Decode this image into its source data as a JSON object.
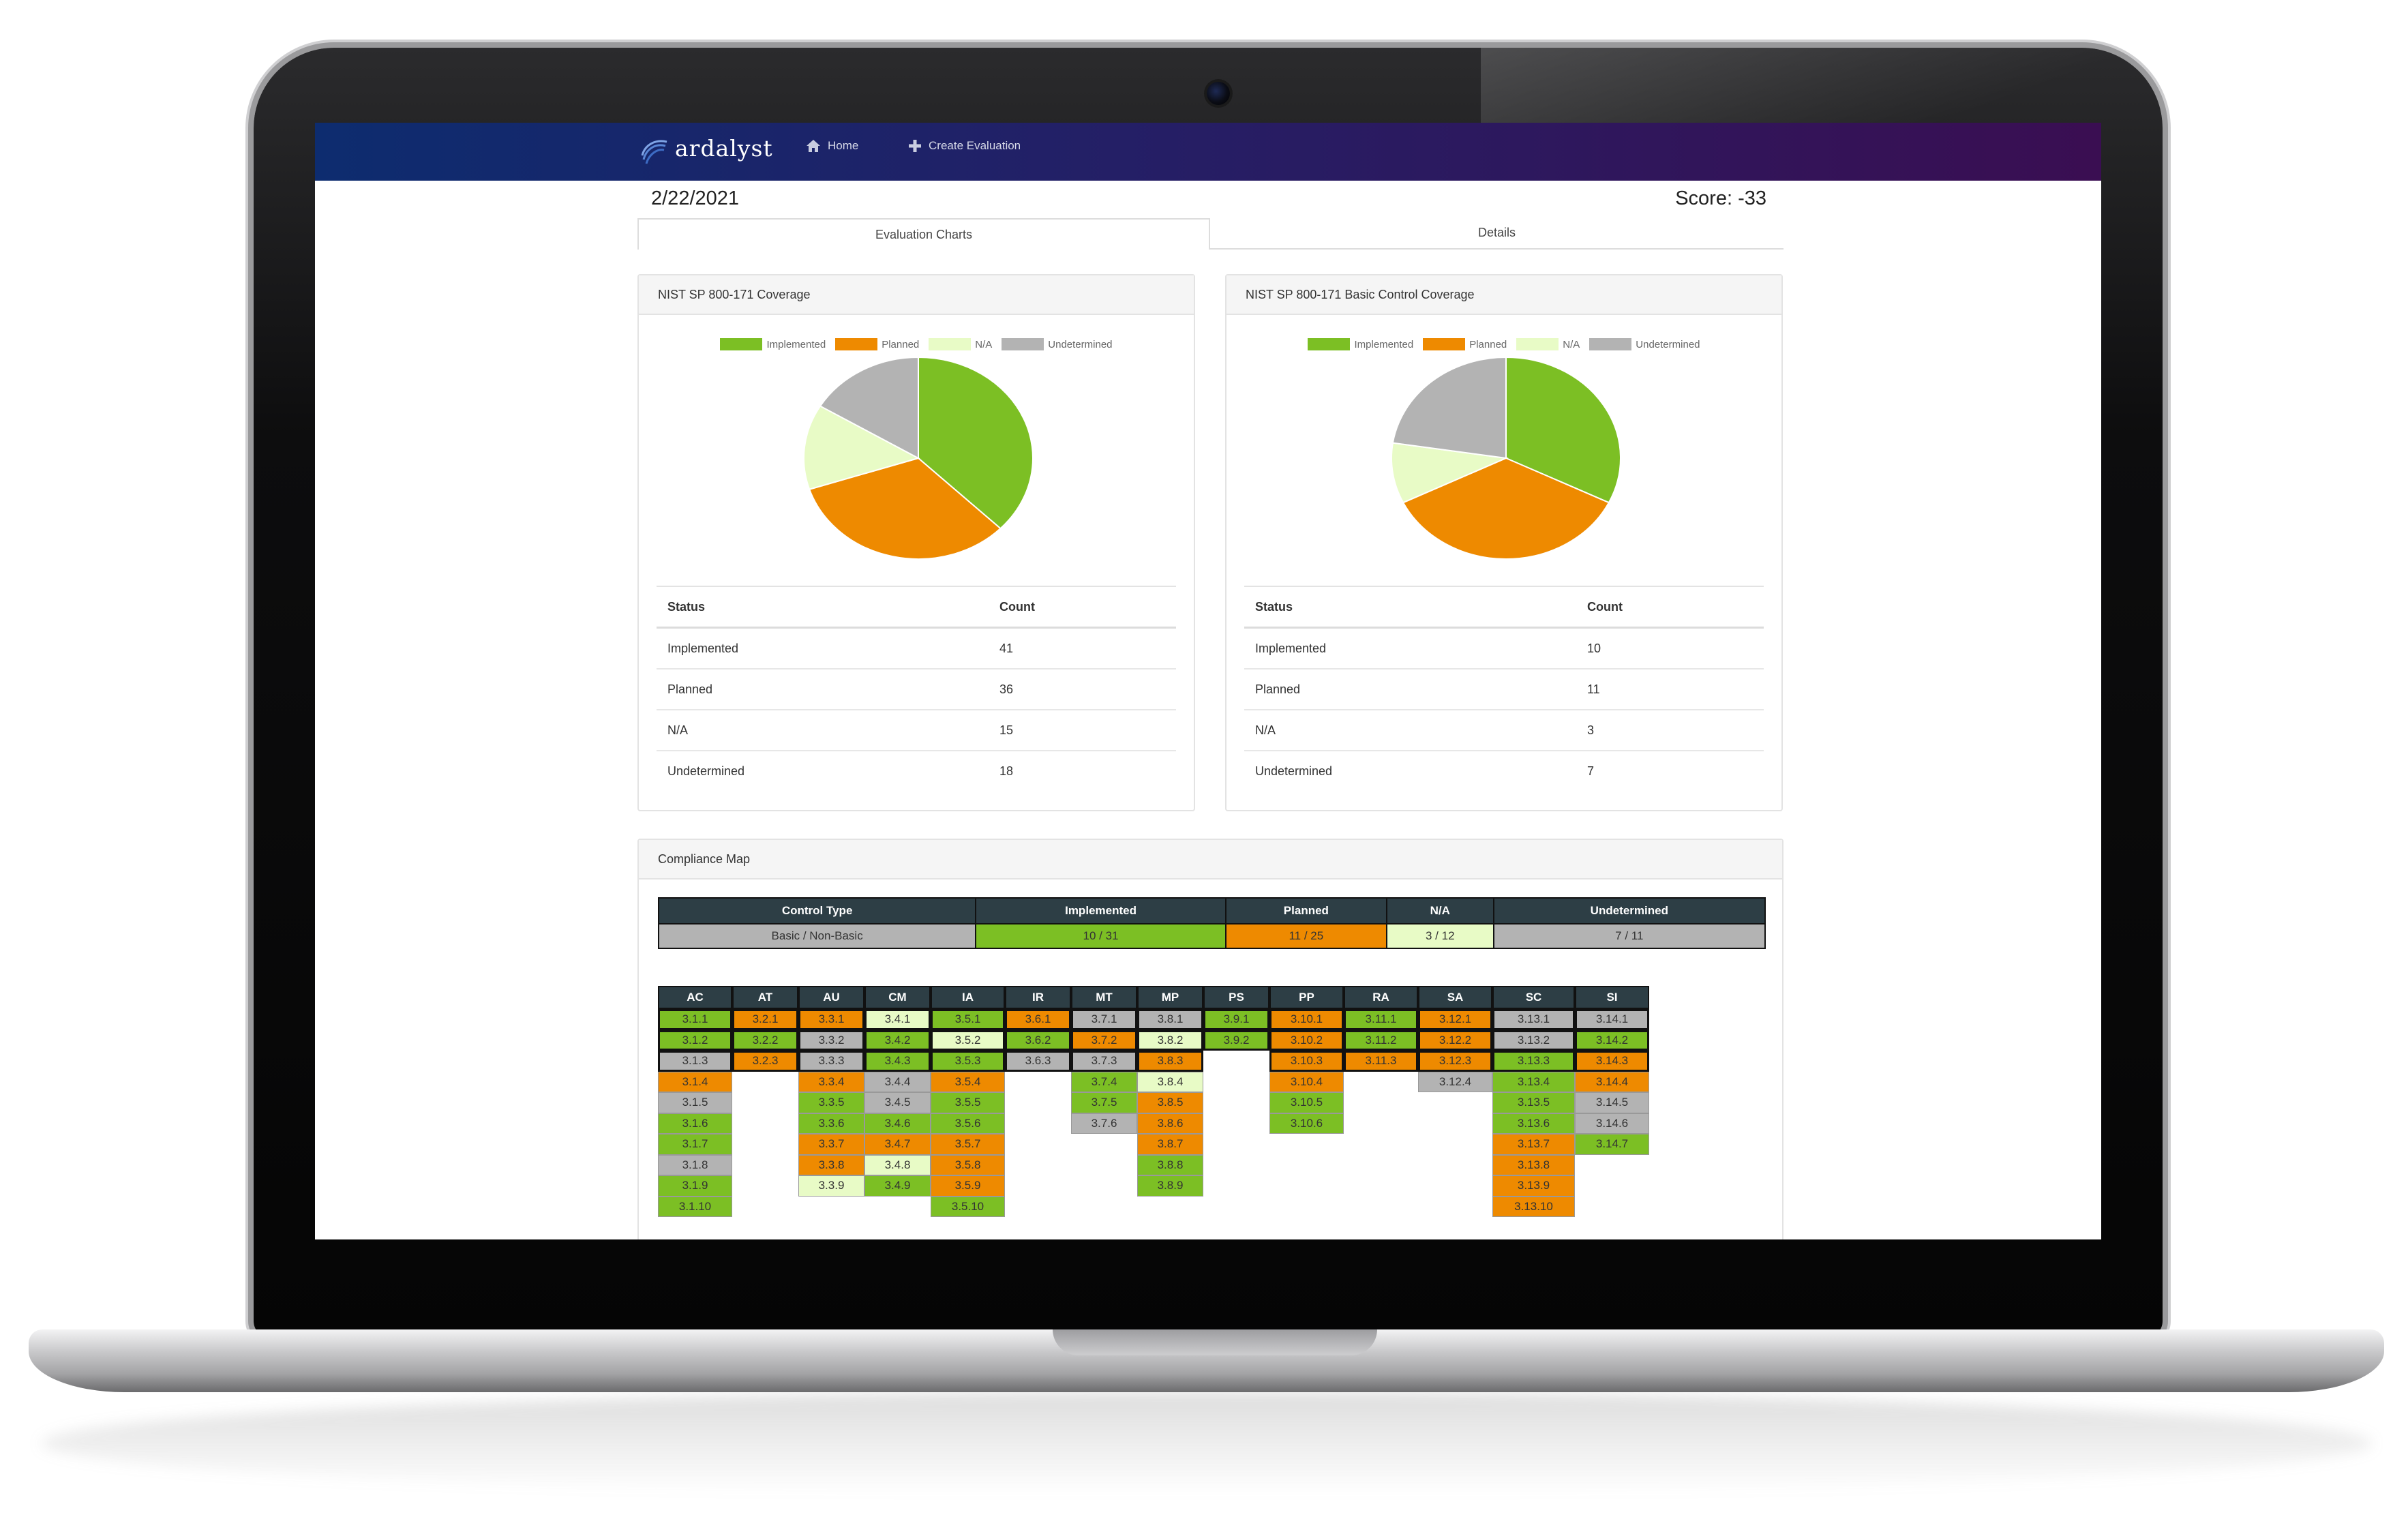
{
  "colors": {
    "implemented": "#7cbf24",
    "planned": "#ee8a00",
    "na": "#e8fbc6",
    "undetermined": "#b3b3b3",
    "grid_header": "#2d3e45",
    "navbar_start": "#0d2c6f",
    "navbar_end": "#3a0e52"
  },
  "navbar": {
    "brand": "ardalyst",
    "home_label": "Home",
    "home_icon": "home-icon",
    "create_label": "Create Evaluation",
    "create_icon": "plus-icon"
  },
  "header": {
    "date": "2/22/2021",
    "score": "Score: -33"
  },
  "tabs": [
    {
      "label": "Evaluation Charts",
      "active": true
    },
    {
      "label": "Details",
      "active": false
    }
  ],
  "charts": [
    {
      "title": "NIST SP 800-171 Coverage",
      "legend": [
        "Implemented",
        "Planned",
        "N/A",
        "Undetermined"
      ],
      "table_headers": [
        "Status",
        "Count"
      ],
      "rows": [
        {
          "status": "Implemented",
          "count": "41"
        },
        {
          "status": "Planned",
          "count": "36"
        },
        {
          "status": "N/A",
          "count": "15"
        },
        {
          "status": "Undetermined",
          "count": "18"
        }
      ]
    },
    {
      "title": "NIST SP 800-171 Basic Control Coverage",
      "legend": [
        "Implemented",
        "Planned",
        "N/A",
        "Undetermined"
      ],
      "table_headers": [
        "Status",
        "Count"
      ],
      "rows": [
        {
          "status": "Implemented",
          "count": "10"
        },
        {
          "status": "Planned",
          "count": "11"
        },
        {
          "status": "N/A",
          "count": "3"
        },
        {
          "status": "Undetermined",
          "count": "7"
        }
      ]
    }
  ],
  "chart_data": [
    {
      "type": "pie",
      "title": "NIST SP 800-171 Coverage",
      "categories": [
        "Implemented",
        "Planned",
        "N/A",
        "Undetermined"
      ],
      "values": [
        41,
        36,
        15,
        18
      ],
      "colors": [
        "#7cbf24",
        "#ee8a00",
        "#e8fbc6",
        "#b3b3b3"
      ],
      "legend": "top"
    },
    {
      "type": "pie",
      "title": "NIST SP 800-171 Basic Control Coverage",
      "categories": [
        "Implemented",
        "Planned",
        "N/A",
        "Undetermined"
      ],
      "values": [
        10,
        11,
        3,
        7
      ],
      "colors": [
        "#7cbf24",
        "#ee8a00",
        "#e8fbc6",
        "#b3b3b3"
      ],
      "legend": "top"
    }
  ],
  "compliance_map": {
    "title": "Compliance Map",
    "summary_headers": [
      "Control Type",
      "Implemented",
      "Planned",
      "N/A",
      "Undetermined"
    ],
    "summary_values": [
      "Basic / Non-Basic",
      "10 / 31",
      "11 / 25",
      "3 / 12",
      "7 / 11"
    ],
    "families": [
      {
        "name": "AC",
        "controls": [
          [
            "3.1.1",
            "I"
          ],
          [
            "3.1.2",
            "I"
          ],
          [
            "3.1.3",
            "U"
          ],
          [
            "3.1.4",
            "P"
          ],
          [
            "3.1.5",
            "U"
          ],
          [
            "3.1.6",
            "I"
          ],
          [
            "3.1.7",
            "I"
          ],
          [
            "3.1.8",
            "U"
          ],
          [
            "3.1.9",
            "I"
          ],
          [
            "3.1.10",
            "I"
          ]
        ]
      },
      {
        "name": "AT",
        "controls": [
          [
            "3.2.1",
            "P"
          ],
          [
            "3.2.2",
            "I"
          ],
          [
            "3.2.3",
            "P"
          ]
        ]
      },
      {
        "name": "AU",
        "controls": [
          [
            "3.3.1",
            "P"
          ],
          [
            "3.3.2",
            "U"
          ],
          [
            "3.3.3",
            "U"
          ],
          [
            "3.3.4",
            "P"
          ],
          [
            "3.3.5",
            "I"
          ],
          [
            "3.3.6",
            "I"
          ],
          [
            "3.3.7",
            "P"
          ],
          [
            "3.3.8",
            "P"
          ],
          [
            "3.3.9",
            "N"
          ]
        ]
      },
      {
        "name": "CM",
        "controls": [
          [
            "3.4.1",
            "N"
          ],
          [
            "3.4.2",
            "I"
          ],
          [
            "3.4.3",
            "I"
          ],
          [
            "3.4.4",
            "U"
          ],
          [
            "3.4.5",
            "U"
          ],
          [
            "3.4.6",
            "I"
          ],
          [
            "3.4.7",
            "P"
          ],
          [
            "3.4.8",
            "N"
          ],
          [
            "3.4.9",
            "I"
          ]
        ]
      },
      {
        "name": "IA",
        "controls": [
          [
            "3.5.1",
            "I"
          ],
          [
            "3.5.2",
            "N"
          ],
          [
            "3.5.3",
            "I"
          ],
          [
            "3.5.4",
            "P"
          ],
          [
            "3.5.5",
            "I"
          ],
          [
            "3.5.6",
            "I"
          ],
          [
            "3.5.7",
            "P"
          ],
          [
            "3.5.8",
            "P"
          ],
          [
            "3.5.9",
            "P"
          ],
          [
            "3.5.10",
            "I"
          ]
        ]
      },
      {
        "name": "IR",
        "controls": [
          [
            "3.6.1",
            "P"
          ],
          [
            "3.6.2",
            "I"
          ],
          [
            "3.6.3",
            "U"
          ]
        ]
      },
      {
        "name": "MT",
        "controls": [
          [
            "3.7.1",
            "U"
          ],
          [
            "3.7.2",
            "P"
          ],
          [
            "3.7.3",
            "U"
          ],
          [
            "3.7.4",
            "I"
          ],
          [
            "3.7.5",
            "I"
          ],
          [
            "3.7.6",
            "U"
          ]
        ]
      },
      {
        "name": "MP",
        "controls": [
          [
            "3.8.1",
            "U"
          ],
          [
            "3.8.2",
            "N"
          ],
          [
            "3.8.3",
            "P"
          ],
          [
            "3.8.4",
            "N"
          ],
          [
            "3.8.5",
            "P"
          ],
          [
            "3.8.6",
            "P"
          ],
          [
            "3.8.7",
            "P"
          ],
          [
            "3.8.8",
            "I"
          ],
          [
            "3.8.9",
            "I"
          ]
        ]
      },
      {
        "name": "PS",
        "controls": [
          [
            "3.9.1",
            "I"
          ],
          [
            "3.9.2",
            "I"
          ]
        ]
      },
      {
        "name": "PP",
        "controls": [
          [
            "3.10.1",
            "P"
          ],
          [
            "3.10.2",
            "P"
          ],
          [
            "3.10.3",
            "P"
          ],
          [
            "3.10.4",
            "P"
          ],
          [
            "3.10.5",
            "I"
          ],
          [
            "3.10.6",
            "I"
          ]
        ]
      },
      {
        "name": "RA",
        "controls": [
          [
            "3.11.1",
            "I"
          ],
          [
            "3.11.2",
            "I"
          ],
          [
            "3.11.3",
            "P"
          ]
        ]
      },
      {
        "name": "SA",
        "controls": [
          [
            "3.12.1",
            "P"
          ],
          [
            "3.12.2",
            "P"
          ],
          [
            "3.12.3",
            "P"
          ],
          [
            "3.12.4",
            "U"
          ]
        ]
      },
      {
        "name": "SC",
        "controls": [
          [
            "3.13.1",
            "U"
          ],
          [
            "3.13.2",
            "U"
          ],
          [
            "3.13.3",
            "I"
          ],
          [
            "3.13.4",
            "I"
          ],
          [
            "3.13.5",
            "I"
          ],
          [
            "3.13.6",
            "I"
          ],
          [
            "3.13.7",
            "P"
          ],
          [
            "3.13.8",
            "P"
          ],
          [
            "3.13.9",
            "P"
          ],
          [
            "3.13.10",
            "P"
          ]
        ]
      },
      {
        "name": "SI",
        "controls": [
          [
            "3.14.1",
            "U"
          ],
          [
            "3.14.2",
            "I"
          ],
          [
            "3.14.3",
            "P"
          ],
          [
            "3.14.4",
            "P"
          ],
          [
            "3.14.5",
            "U"
          ],
          [
            "3.14.6",
            "U"
          ],
          [
            "3.14.7",
            "I"
          ]
        ]
      }
    ]
  }
}
